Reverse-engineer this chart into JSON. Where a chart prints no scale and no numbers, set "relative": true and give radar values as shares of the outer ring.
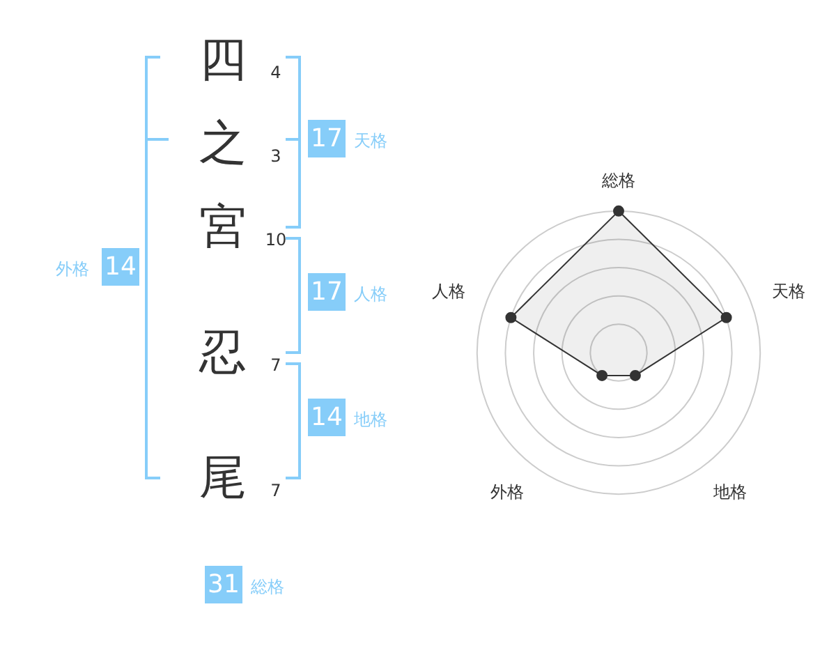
{
  "chart_data": [
    {
      "type": "other",
      "annotations": [
        "四",
        "4",
        "之",
        "3",
        "宮",
        "10",
        "忍",
        "7",
        "尾",
        "7",
        "17",
        "天格",
        "17",
        "人格",
        "14",
        "地格",
        "14",
        "外格",
        "31",
        "総格"
      ]
    },
    {
      "type": "radar",
      "categories": [
        "総格",
        "天格",
        "地格",
        "外格",
        "人格"
      ],
      "relative": true,
      "grid": true,
      "marker": "circle",
      "series": [
        {
          "color": "#333333",
          "values": [
            1,
            0.8,
            0.2,
            0.2,
            0.8
          ]
        }
      ]
    }
  ]
}
